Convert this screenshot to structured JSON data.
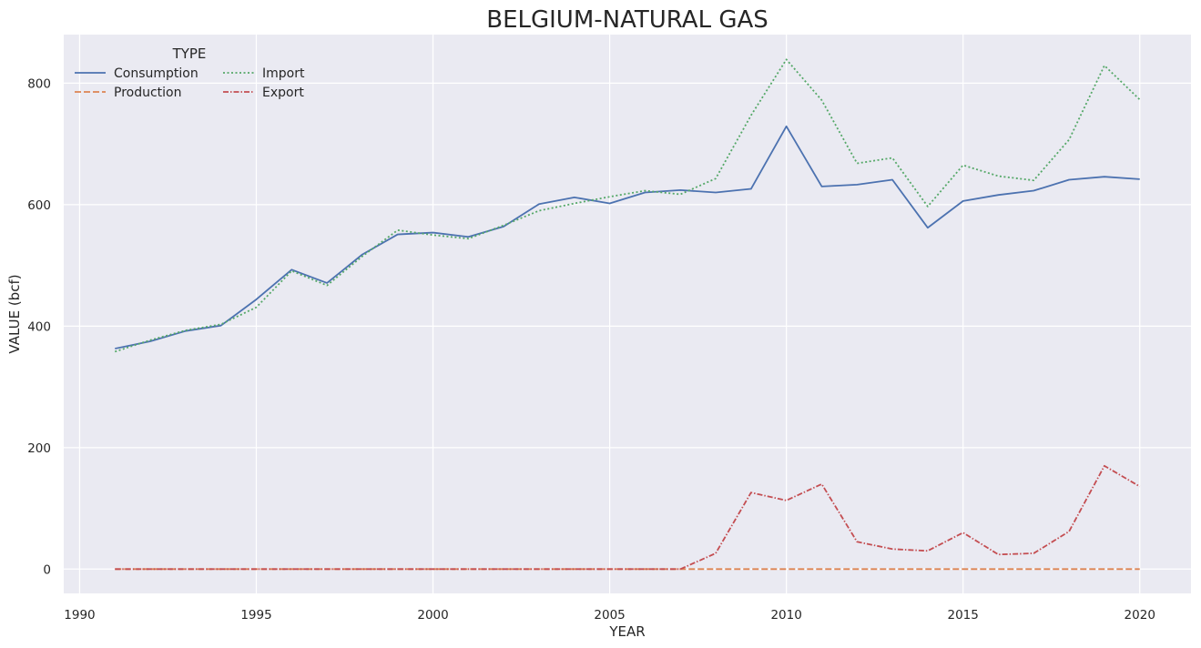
{
  "chart_data": {
    "type": "line",
    "title": "BELGIUM-NATURAL GAS",
    "xlabel": "YEAR",
    "ylabel": "VALUE (bcf)",
    "xlim": [
      1989.55,
      1991.0
    ],
    "x_range": [
      1989.55,
      2021.45
    ],
    "ylim": [
      -40,
      880
    ],
    "xticks": [
      1990,
      1995,
      2000,
      2005,
      2010,
      2015,
      2020
    ],
    "yticks": [
      0,
      200,
      400,
      600,
      800
    ],
    "grid": true,
    "legend": {
      "title": "TYPE",
      "placement": "top-left"
    },
    "x": [
      1991,
      1992,
      1993,
      1994,
      1995,
      1996,
      1997,
      1998,
      1999,
      2000,
      2001,
      2002,
      2003,
      2004,
      2005,
      2006,
      2007,
      2008,
      2009,
      2010,
      2011,
      2012,
      2013,
      2014,
      2015,
      2016,
      2017,
      2018,
      2019,
      2020
    ],
    "series": [
      {
        "name": "Consumption",
        "color": "#4c72b0",
        "dash": "solid",
        "values": [
          363,
          375,
          392,
          401,
          444,
          493,
          471,
          518,
          551,
          554,
          547,
          564,
          601,
          612,
          602,
          620,
          624,
          620,
          626,
          729,
          630,
          633,
          641,
          562,
          606,
          616,
          623,
          641,
          646,
          642
        ]
      },
      {
        "name": "Production",
        "color": "#dd8452",
        "dash": "dashed",
        "values": [
          0,
          0,
          0,
          0,
          0,
          0,
          0,
          0,
          0,
          0,
          0,
          0,
          0,
          0,
          0,
          0,
          0,
          0,
          0,
          0,
          0,
          0,
          0,
          0,
          0,
          0,
          0,
          0,
          0,
          0
        ]
      },
      {
        "name": "Import",
        "color": "#55a868",
        "dash": "dotted",
        "values": [
          358,
          377,
          393,
          403,
          431,
          491,
          467,
          515,
          558,
          550,
          544,
          566,
          590,
          602,
          613,
          623,
          617,
          643,
          747,
          839,
          772,
          668,
          677,
          597,
          665,
          647,
          640,
          707,
          829,
          773
        ]
      },
      {
        "name": "Export",
        "color": "#c44e52",
        "dash": "dashdot",
        "values": [
          0,
          0,
          0,
          0,
          0,
          0,
          0,
          0,
          0,
          0,
          0,
          0,
          0,
          0,
          0,
          0,
          0,
          26,
          126,
          113,
          140,
          45,
          33,
          30,
          60,
          24,
          26,
          62,
          170,
          136
        ]
      }
    ]
  }
}
